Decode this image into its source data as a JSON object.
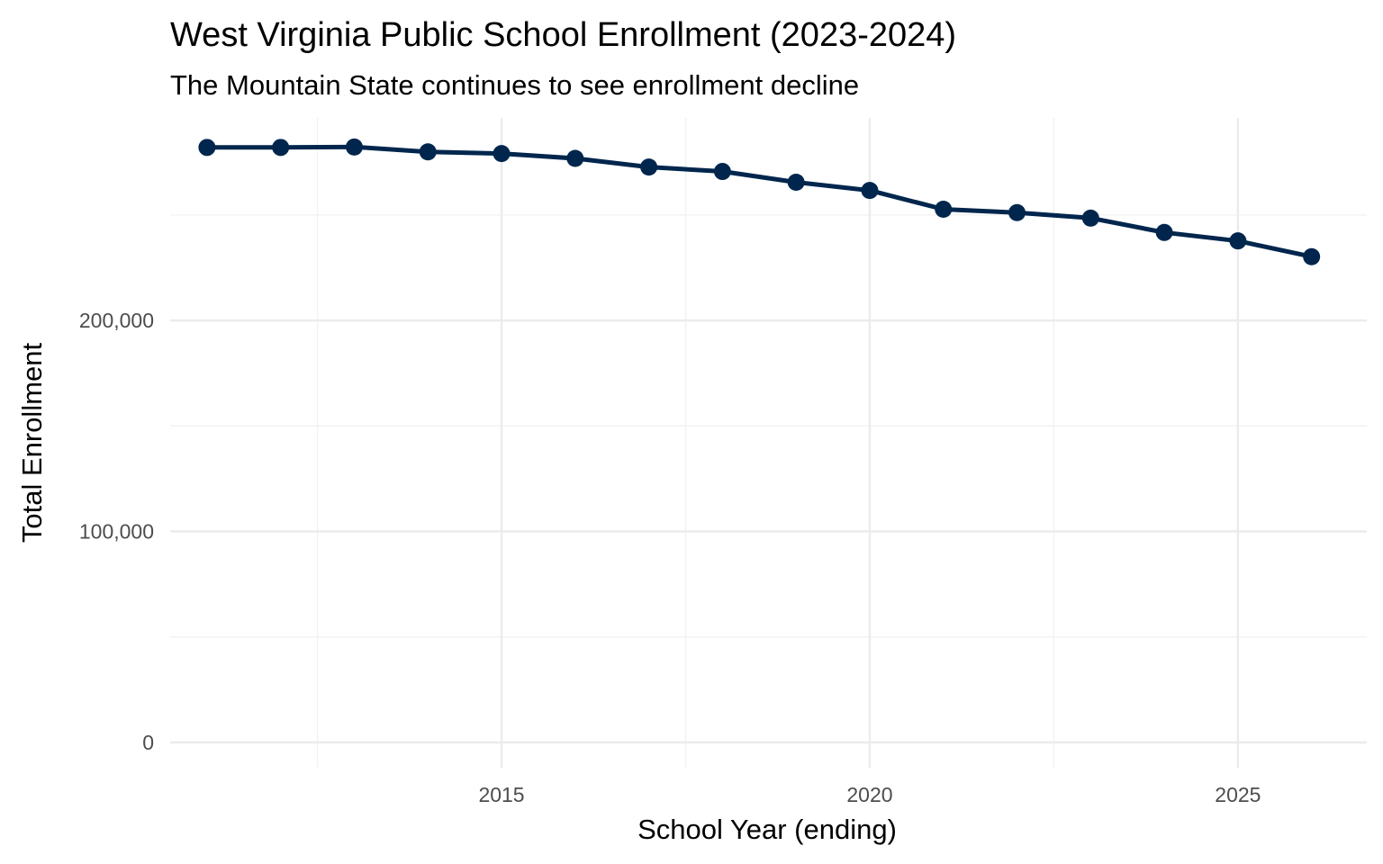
{
  "chart_data": {
    "type": "line",
    "title": "West Virginia Public School Enrollment (2023-2024)",
    "subtitle": "The Mountain State continues to see enrollment decline",
    "xlabel": "School Year (ending)",
    "ylabel": "Total Enrollment",
    "xlim": [
      2010.5,
      2026.75
    ],
    "ylim": [
      -12000,
      296000
    ],
    "x_ticks": [
      2015,
      2020,
      2025
    ],
    "x_tick_labels": [
      "2015",
      "2020",
      "2025"
    ],
    "y_ticks": [
      0,
      100000,
      200000
    ],
    "y_tick_labels": [
      "0",
      "100,000",
      "200,000"
    ],
    "grid": true,
    "legend": "none",
    "series": [
      {
        "name": "Total Enrollment",
        "color": "#00264d",
        "x": [
          2011,
          2012,
          2013,
          2014,
          2015,
          2016,
          2017,
          2018,
          2019,
          2020,
          2021,
          2022,
          2023,
          2024,
          2025,
          2026
        ],
        "values": [
          282000,
          282000,
          282200,
          279900,
          279100,
          276800,
          272700,
          270600,
          265500,
          261600,
          252700,
          251100,
          248500,
          241700,
          237700,
          230200
        ]
      }
    ]
  }
}
